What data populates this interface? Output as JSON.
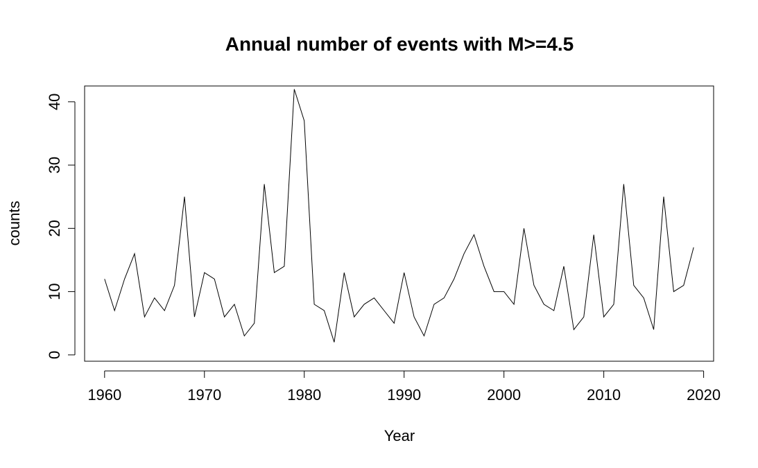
{
  "chart_data": {
    "type": "line",
    "title": "Annual number of events with M>=4.5",
    "xlabel": "Year",
    "ylabel": "counts",
    "xlim": [
      1958,
      2021
    ],
    "ylim": [
      -1,
      42.5
    ],
    "xticks": [
      1960,
      1970,
      1980,
      1990,
      2000,
      2010,
      2020
    ],
    "yticks": [
      0,
      10,
      20,
      30,
      40
    ],
    "grid": false,
    "line_color": "#000000",
    "series": [
      {
        "x": [
          1960,
          1961,
          1962,
          1963,
          1964,
          1965,
          1966,
          1967,
          1968,
          1969,
          1970,
          1971,
          1972,
          1973,
          1974,
          1975,
          1976,
          1977,
          1978,
          1979,
          1980,
          1981,
          1982,
          1983,
          1984,
          1985,
          1986,
          1987,
          1988,
          1989,
          1990,
          1991,
          1992,
          1993,
          1994,
          1995,
          1996,
          1997,
          1998,
          1999,
          2000,
          2001,
          2002,
          2003,
          2004,
          2005,
          2006,
          2007,
          2008,
          2009,
          2010,
          2011,
          2012,
          2013,
          2014,
          2015,
          2016,
          2017,
          2018,
          2019
        ],
        "values": [
          12,
          7,
          12,
          16,
          6,
          9,
          7,
          11,
          25,
          6,
          13,
          12,
          6,
          8,
          3,
          5,
          27,
          13,
          14,
          42,
          37,
          8,
          7,
          2,
          13,
          6,
          8,
          9,
          7,
          5,
          13,
          6,
          3,
          8,
          9,
          12,
          16,
          19,
          14,
          10,
          10,
          8,
          20,
          11,
          8,
          7,
          14,
          4,
          6,
          19,
          6,
          8,
          27,
          11,
          9,
          4,
          25,
          10,
          11,
          17
        ]
      }
    ]
  }
}
